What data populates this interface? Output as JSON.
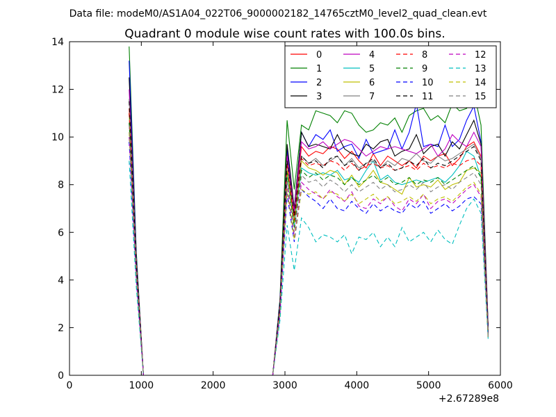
{
  "chart_data": {
    "type": "line",
    "suptitle": "Data file: modeM0/AS1A04_022T06_9000002182_14765cztM0_level2_quad_clean.evt",
    "title": "Quadrant 0 module wise count rates with 100.0s bins.",
    "xlabel": "",
    "ylabel": "",
    "x_offset_label": "+2.67289e8",
    "xlim": [
      0,
      6000
    ],
    "ylim": [
      0,
      14
    ],
    "x_ticks": [
      0,
      1000,
      2000,
      3000,
      4000,
      5000,
      6000
    ],
    "y_ticks": [
      0,
      2,
      4,
      6,
      8,
      10,
      12,
      14
    ],
    "x_tick_labels": [
      "0",
      "1000",
      "2000",
      "3000",
      "4000",
      "5000",
      "6000"
    ],
    "y_tick_labels": [
      "0",
      "2",
      "4",
      "6",
      "8",
      "10",
      "12",
      "14"
    ],
    "grid": false,
    "legend_position": "top-right",
    "legend_columns": 4,
    "x_segments": [
      [
        830,
        930,
        1030,
        1130,
        1230,
        1330,
        1430,
        1530,
        1630,
        1730,
        1830,
        1930,
        2030,
        2130,
        2230,
        2330,
        2430,
        2530,
        2630,
        2730,
        2830,
        2930,
        3030,
        3130,
        3230,
        3330,
        3430,
        3530,
        3630,
        3730,
        3830,
        3930,
        4030,
        4130,
        4230,
        4330,
        4430,
        4530,
        4630,
        4730,
        4830,
        4930,
        5030,
        5130,
        5230,
        5330,
        5430,
        5530,
        5630,
        5730,
        5830
      ]
    ],
    "series": [
      {
        "name": "0",
        "color": "#ff0000",
        "dash": "solid",
        "values": [
          11.2,
          5.0,
          0,
          0,
          0,
          0,
          0,
          0,
          0,
          0,
          0,
          0,
          0,
          0,
          0,
          0,
          0,
          0,
          0,
          0,
          0,
          3.0,
          9.3,
          6.8,
          9.6,
          9.2,
          9.4,
          9.3,
          9.6,
          9.5,
          9.1,
          9.4,
          9.0,
          8.7,
          9.3,
          8.8,
          9.2,
          9.0,
          8.8,
          9.0,
          8.7,
          9.2,
          9.0,
          9.2,
          9.3,
          8.8,
          9.1,
          9.6,
          9.8,
          9.2,
          2.0
        ]
      },
      {
        "name": "1",
        "color": "#008000",
        "dash": "solid",
        "values": [
          13.8,
          5.2,
          0,
          0,
          0,
          0,
          0,
          0,
          0,
          0,
          0,
          0,
          0,
          0,
          0,
          0,
          0,
          0,
          0,
          0,
          0,
          3.2,
          10.7,
          7.8,
          10.5,
          10.3,
          11.1,
          11.0,
          10.9,
          10.6,
          11.1,
          11.0,
          10.5,
          10.2,
          10.3,
          10.6,
          10.5,
          10.8,
          10.2,
          10.9,
          11.1,
          11.2,
          10.7,
          10.9,
          10.6,
          11.4,
          11.1,
          11.2,
          11.9,
          10.5,
          2.1
        ]
      },
      {
        "name": "2",
        "color": "#0000ff",
        "dash": "solid",
        "values": [
          13.2,
          5.0,
          0,
          0,
          0,
          0,
          0,
          0,
          0,
          0,
          0,
          0,
          0,
          0,
          0,
          0,
          0,
          0,
          0,
          0,
          0,
          3.1,
          9.5,
          7.0,
          10.2,
          9.6,
          10.1,
          9.9,
          10.3,
          9.4,
          9.6,
          9.7,
          9.1,
          9.9,
          9.3,
          9.4,
          9.5,
          10.3,
          9.5,
          10.2,
          11.4,
          9.6,
          9.7,
          9.6,
          10.5,
          9.6,
          9.9,
          10.7,
          11.3,
          9.8,
          2.0
        ]
      },
      {
        "name": "3",
        "color": "#000000",
        "dash": "solid",
        "values": [
          12.5,
          4.8,
          0,
          0,
          0,
          0,
          0,
          0,
          0,
          0,
          0,
          0,
          0,
          0,
          0,
          0,
          0,
          0,
          0,
          0,
          0,
          3.0,
          9.7,
          7.0,
          10.2,
          9.6,
          9.7,
          9.6,
          9.5,
          10.1,
          9.5,
          9.3,
          9.2,
          9.7,
          9.5,
          9.8,
          9.9,
          9.2,
          9.4,
          9.5,
          10.1,
          9.3,
          9.6,
          9.7,
          9.2,
          9.8,
          9.5,
          10.1,
          10.7,
          9.7,
          2.0
        ]
      },
      {
        "name": "4",
        "color": "#bf00bf",
        "dash": "solid",
        "values": [
          12.0,
          4.9,
          0,
          0,
          0,
          0,
          0,
          0,
          0,
          0,
          0,
          0,
          0,
          0,
          0,
          0,
          0,
          0,
          0,
          0,
          0,
          3.0,
          9.2,
          6.9,
          9.8,
          9.5,
          9.6,
          9.8,
          9.5,
          9.7,
          9.9,
          9.8,
          9.5,
          9.2,
          9.4,
          9.6,
          9.5,
          9.6,
          9.5,
          9.4,
          9.3,
          9.5,
          9.7,
          9.2,
          9.5,
          10.1,
          9.8,
          9.6,
          10.2,
          9.6,
          2.0
        ]
      },
      {
        "name": "5",
        "color": "#00bfbf",
        "dash": "solid",
        "values": [
          11.0,
          4.5,
          0,
          0,
          0,
          0,
          0,
          0,
          0,
          0,
          0,
          0,
          0,
          0,
          0,
          0,
          0,
          0,
          0,
          0,
          0,
          2.8,
          8.5,
          6.3,
          8.7,
          8.5,
          8.4,
          8.5,
          8.4,
          8.6,
          8.2,
          8.3,
          8.1,
          8.6,
          9.0,
          8.2,
          8.4,
          8.1,
          8.0,
          8.1,
          8.2,
          8.1,
          8.2,
          8.3,
          8.1,
          8.4,
          8.8,
          9.4,
          9.2,
          8.3,
          1.9
        ]
      },
      {
        "name": "6",
        "color": "#bfbf00",
        "dash": "solid",
        "values": [
          11.0,
          4.6,
          0,
          0,
          0,
          0,
          0,
          0,
          0,
          0,
          0,
          0,
          0,
          0,
          0,
          0,
          0,
          0,
          0,
          0,
          0,
          2.9,
          8.6,
          6.4,
          9.0,
          8.7,
          8.6,
          8.4,
          8.6,
          8.5,
          8.0,
          8.4,
          7.9,
          8.2,
          8.6,
          8.1,
          8.0,
          7.8,
          7.6,
          8.3,
          7.9,
          8.0,
          7.9,
          8.2,
          7.8,
          8.0,
          8.1,
          8.6,
          8.7,
          8.5,
          1.6
        ]
      },
      {
        "name": "7",
        "color": "#808080",
        "dash": "solid",
        "values": [
          11.6,
          4.8,
          0,
          0,
          0,
          0,
          0,
          0,
          0,
          0,
          0,
          0,
          0,
          0,
          0,
          0,
          0,
          0,
          0,
          0,
          0,
          2.9,
          9.0,
          6.6,
          9.2,
          8.9,
          9.1,
          8.8,
          9.0,
          9.2,
          8.8,
          9.1,
          8.7,
          8.9,
          9.0,
          8.7,
          9.0,
          8.8,
          9.1,
          9.0,
          9.3,
          9.0,
          8.9,
          9.2,
          9.0,
          9.1,
          9.3,
          9.5,
          9.7,
          9.1,
          1.8
        ]
      },
      {
        "name": "8",
        "color": "#ff0000",
        "dash": "dashed",
        "values": [
          11.0,
          4.6,
          0,
          0,
          0,
          0,
          0,
          0,
          0,
          0,
          0,
          0,
          0,
          0,
          0,
          0,
          0,
          0,
          0,
          0,
          0,
          2.9,
          8.9,
          6.5,
          9.1,
          8.8,
          8.9,
          8.8,
          9.0,
          8.9,
          8.6,
          8.9,
          8.6,
          8.8,
          8.9,
          8.7,
          8.8,
          8.6,
          8.7,
          8.8,
          8.6,
          8.9,
          8.7,
          8.8,
          8.7,
          8.9,
          8.8,
          9.0,
          9.1,
          8.8,
          1.8
        ]
      },
      {
        "name": "9",
        "color": "#008000",
        "dash": "dashed",
        "values": [
          10.6,
          4.4,
          0,
          0,
          0,
          0,
          0,
          0,
          0,
          0,
          0,
          0,
          0,
          0,
          0,
          0,
          0,
          0,
          0,
          0,
          0,
          2.7,
          8.5,
          6.2,
          8.6,
          8.3,
          8.5,
          8.2,
          8.4,
          8.3,
          8.0,
          8.3,
          8.0,
          8.2,
          8.4,
          8.1,
          8.3,
          8.0,
          8.1,
          8.3,
          8.0,
          8.2,
          8.1,
          8.3,
          8.0,
          8.2,
          8.4,
          8.6,
          8.8,
          8.3,
          1.7
        ]
      },
      {
        "name": "10",
        "color": "#0000ff",
        "dash": "dashed",
        "values": [
          9.8,
          4.0,
          0,
          0,
          0,
          0,
          0,
          0,
          0,
          0,
          0,
          0,
          0,
          0,
          0,
          0,
          0,
          0,
          0,
          0,
          0,
          2.5,
          7.6,
          5.6,
          7.8,
          7.5,
          7.3,
          7.0,
          7.4,
          7.0,
          6.9,
          7.3,
          7.0,
          6.8,
          7.2,
          6.9,
          7.1,
          6.9,
          6.8,
          7.2,
          7.0,
          7.3,
          6.8,
          7.0,
          7.2,
          6.9,
          7.1,
          7.4,
          7.5,
          7.2,
          1.6
        ]
      },
      {
        "name": "11",
        "color": "#000000",
        "dash": "dashed",
        "values": [
          11.5,
          4.8,
          0,
          0,
          0,
          0,
          0,
          0,
          0,
          0,
          0,
          0,
          0,
          0,
          0,
          0,
          0,
          0,
          0,
          0,
          0,
          3.0,
          9.0,
          6.7,
          9.2,
          8.9,
          9.0,
          8.7,
          9.1,
          9.2,
          8.8,
          9.0,
          8.6,
          8.9,
          9.1,
          8.7,
          8.9,
          8.6,
          8.7,
          9.0,
          8.8,
          9.1,
          8.7,
          8.9,
          8.8,
          9.0,
          9.2,
          9.4,
          9.6,
          9.0,
          1.8
        ]
      },
      {
        "name": "12",
        "color": "#bf00bf",
        "dash": "dashed",
        "values": [
          10.0,
          4.1,
          0,
          0,
          0,
          0,
          0,
          0,
          0,
          0,
          0,
          0,
          0,
          0,
          0,
          0,
          0,
          0,
          0,
          0,
          0,
          2.6,
          8.0,
          5.8,
          8.1,
          7.8,
          7.6,
          7.4,
          7.8,
          7.5,
          7.3,
          7.7,
          7.1,
          7.0,
          7.4,
          7.2,
          7.5,
          7.1,
          6.9,
          7.4,
          7.2,
          7.6,
          7.0,
          7.3,
          7.4,
          7.2,
          7.5,
          7.8,
          8.0,
          7.5,
          1.6
        ]
      },
      {
        "name": "13",
        "color": "#00bfbf",
        "dash": "dashed",
        "values": [
          9.0,
          3.7,
          0,
          0,
          0,
          0,
          0,
          0,
          0,
          0,
          0,
          0,
          0,
          0,
          0,
          0,
          0,
          0,
          0,
          0,
          0,
          2.3,
          6.3,
          4.4,
          6.6,
          6.2,
          5.6,
          5.9,
          5.8,
          5.6,
          5.9,
          5.1,
          5.8,
          5.7,
          6.0,
          5.4,
          5.8,
          5.4,
          6.2,
          5.6,
          5.8,
          6.0,
          5.6,
          6.1,
          5.7,
          5.5,
          6.3,
          7.0,
          7.4,
          6.8,
          1.5
        ]
      },
      {
        "name": "14",
        "color": "#bfbf00",
        "dash": "dashed",
        "values": [
          10.2,
          4.2,
          0,
          0,
          0,
          0,
          0,
          0,
          0,
          0,
          0,
          0,
          0,
          0,
          0,
          0,
          0,
          0,
          0,
          0,
          0,
          2.6,
          7.8,
          5.7,
          7.8,
          7.6,
          7.7,
          7.4,
          7.7,
          7.6,
          7.3,
          7.6,
          7.2,
          7.4,
          7.6,
          7.3,
          7.5,
          7.2,
          7.3,
          7.5,
          7.3,
          7.6,
          7.2,
          7.4,
          7.5,
          7.3,
          7.6,
          7.9,
          8.1,
          7.6,
          1.5
        ]
      },
      {
        "name": "15",
        "color": "#808080",
        "dash": "dashed",
        "values": [
          10.5,
          4.3,
          0,
          0,
          0,
          0,
          0,
          0,
          0,
          0,
          0,
          0,
          0,
          0,
          0,
          0,
          0,
          0,
          0,
          0,
          0,
          2.7,
          8.2,
          6.0,
          8.4,
          8.1,
          8.2,
          7.9,
          8.2,
          8.0,
          7.7,
          8.0,
          7.7,
          7.9,
          8.1,
          7.8,
          8.0,
          7.7,
          7.8,
          8.0,
          7.8,
          8.1,
          7.7,
          7.9,
          8.0,
          7.8,
          8.1,
          8.3,
          8.5,
          8.0,
          1.6
        ]
      }
    ]
  }
}
